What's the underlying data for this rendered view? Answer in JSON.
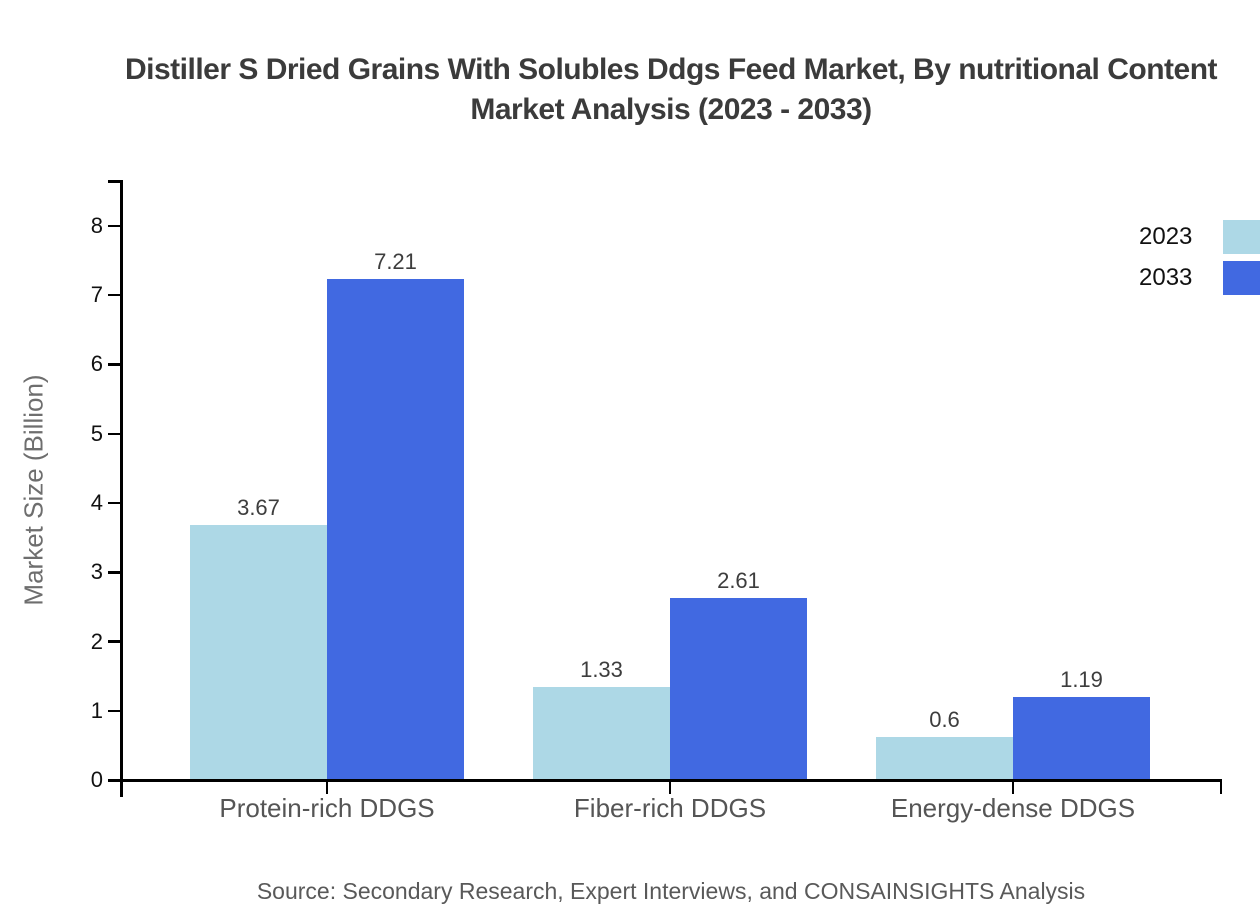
{
  "title": {
    "line1": "Distiller S Dried Grains With Solubles Ddgs Feed Market, By nutritional Content",
    "line2": "Market Analysis (2023 - 2033)"
  },
  "footer": {
    "source": "Source: Secondary Research, Expert Interviews, and CONSAINSIGHTS Analysis"
  },
  "colors": {
    "series_2023": "#ADD8E6",
    "series_2033": "#4169E1",
    "axis": "#000000",
    "title_text": "#3b3b3b",
    "category_text": "#555555",
    "value_label_text": "#3d3d3d",
    "axis_title_text": "#6e6e6e",
    "source_text": "#595959"
  },
  "chart_data": {
    "type": "bar",
    "title": "Distiller S Dried Grains With Solubles Ddgs Feed Market, By nutritional Content Market Analysis (2023 - 2033)",
    "categories": [
      "Protein-rich DDGS",
      "Fiber-rich DDGS",
      "Energy-dense DDGS"
    ],
    "series": [
      {
        "name": "2023",
        "color": "#ADD8E6",
        "values": [
          3.67,
          1.33,
          0.6
        ]
      },
      {
        "name": "2033",
        "color": "#4169E1",
        "values": [
          7.21,
          2.61,
          1.19
        ]
      }
    ],
    "value_labels": [
      "3.67",
      "7.21",
      "1.33",
      "2.61",
      "0.6",
      "1.19"
    ],
    "xlabel": "",
    "ylabel": "Market Size (Billion)",
    "yticks": [
      0,
      1,
      2,
      3,
      4,
      5,
      6,
      7,
      8
    ],
    "ylim": [
      0,
      8.6
    ],
    "grid": false,
    "legend_position": "top-right",
    "legend_entries": [
      "2023",
      "2033"
    ]
  }
}
